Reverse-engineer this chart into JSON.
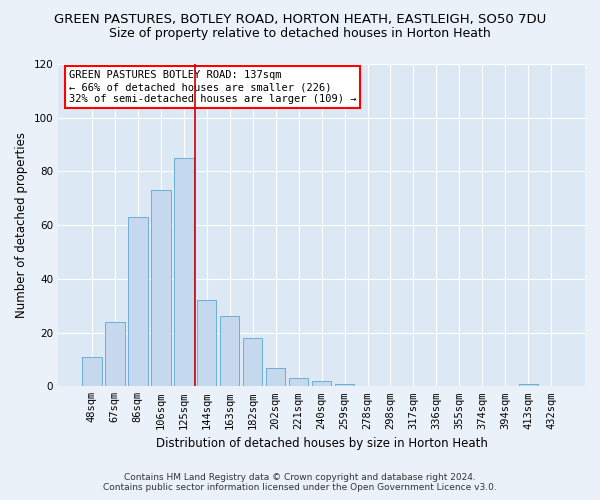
{
  "title1": "GREEN PASTURES, BOTLEY ROAD, HORTON HEATH, EASTLEIGH, SO50 7DU",
  "title2": "Size of property relative to detached houses in Horton Heath",
  "xlabel": "Distribution of detached houses by size in Horton Heath",
  "ylabel": "Number of detached properties",
  "categories": [
    "48sqm",
    "67sqm",
    "86sqm",
    "106sqm",
    "125sqm",
    "144sqm",
    "163sqm",
    "182sqm",
    "202sqm",
    "221sqm",
    "240sqm",
    "259sqm",
    "278sqm",
    "298sqm",
    "317sqm",
    "336sqm",
    "355sqm",
    "374sqm",
    "394sqm",
    "413sqm",
    "432sqm"
  ],
  "values": [
    11,
    24,
    63,
    73,
    85,
    32,
    26,
    18,
    7,
    3,
    2,
    1,
    0,
    0,
    0,
    0,
    0,
    0,
    0,
    1,
    0
  ],
  "bar_color": "#c5d8ed",
  "bar_edge_color": "#6baed6",
  "background_color": "#dce9f5",
  "grid_color": "#ffffff",
  "fig_bg_color": "#eaf1f8",
  "vline_color": "#cc0000",
  "vline_x_idx": 4,
  "ylim": [
    0,
    120
  ],
  "yticks": [
    0,
    20,
    40,
    60,
    80,
    100,
    120
  ],
  "annotation_title": "GREEN PASTURES BOTLEY ROAD: 137sqm",
  "annotation_line1": "← 66% of detached houses are smaller (226)",
  "annotation_line2": "32% of semi-detached houses are larger (109) →",
  "footer1": "Contains HM Land Registry data © Crown copyright and database right 2024.",
  "footer2": "Contains public sector information licensed under the Open Government Licence v3.0.",
  "title1_fontsize": 9.5,
  "title2_fontsize": 9,
  "xlabel_fontsize": 8.5,
  "ylabel_fontsize": 8.5,
  "tick_fontsize": 7.5,
  "annotation_fontsize": 7.5,
  "footer_fontsize": 6.5
}
